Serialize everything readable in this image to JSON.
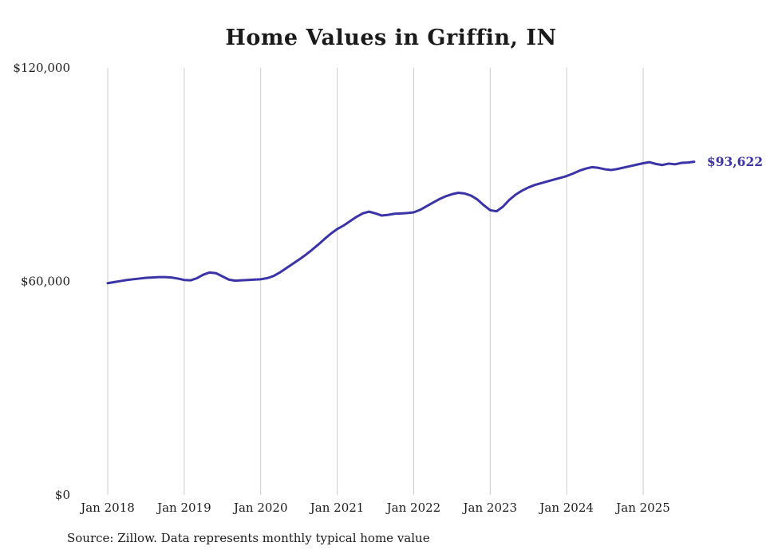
{
  "chart_data": {
    "type": "line",
    "title": "Home Values in Griffin, IN",
    "series_name": "Monthly typical home value",
    "ylim": [
      0,
      120000
    ],
    "grid": "vertical-only",
    "legend": "none",
    "line_color": "#3b33a8",
    "end_label": "$93,622",
    "final_value": 93622,
    "y_ticks": [
      {
        "value": 0,
        "label": "$0"
      },
      {
        "value": 60000,
        "label": "$60,000"
      },
      {
        "value": 120000,
        "label": "$120,000"
      }
    ],
    "x_ticks": [
      {
        "month_index": 0,
        "label": "Jan 2018"
      },
      {
        "month_index": 12,
        "label": "Jan 2019"
      },
      {
        "month_index": 24,
        "label": "Jan 2020"
      },
      {
        "month_index": 36,
        "label": "Jan 2021"
      },
      {
        "month_index": 48,
        "label": "Jan 2022"
      },
      {
        "month_index": 60,
        "label": "Jan 2023"
      },
      {
        "month_index": 72,
        "label": "Jan 2024"
      },
      {
        "month_index": 84,
        "label": "Jan 2025"
      }
    ],
    "x": [
      "2018-01",
      "2018-02",
      "2018-03",
      "2018-04",
      "2018-05",
      "2018-06",
      "2018-07",
      "2018-08",
      "2018-09",
      "2018-10",
      "2018-11",
      "2018-12",
      "2019-01",
      "2019-02",
      "2019-03",
      "2019-04",
      "2019-05",
      "2019-06",
      "2019-07",
      "2019-08",
      "2019-09",
      "2019-10",
      "2019-11",
      "2019-12",
      "2020-01",
      "2020-02",
      "2020-03",
      "2020-04",
      "2020-05",
      "2020-06",
      "2020-07",
      "2020-08",
      "2020-09",
      "2020-10",
      "2020-11",
      "2020-12",
      "2021-01",
      "2021-02",
      "2021-03",
      "2021-04",
      "2021-05",
      "2021-06",
      "2021-07",
      "2021-08",
      "2021-09",
      "2021-10",
      "2021-11",
      "2021-12",
      "2022-01",
      "2022-02",
      "2022-03",
      "2022-04",
      "2022-05",
      "2022-06",
      "2022-07",
      "2022-08",
      "2022-09",
      "2022-10",
      "2022-11",
      "2022-12",
      "2023-01",
      "2023-02",
      "2023-03",
      "2023-04",
      "2023-05",
      "2023-06",
      "2023-07",
      "2023-08",
      "2023-09",
      "2023-10",
      "2023-11",
      "2023-12",
      "2024-01",
      "2024-02",
      "2024-03",
      "2024-04",
      "2024-05",
      "2024-06",
      "2024-07",
      "2024-08",
      "2024-09",
      "2024-10",
      "2024-11",
      "2024-12",
      "2025-01",
      "2025-02",
      "2025-03",
      "2025-04",
      "2025-05",
      "2025-06",
      "2025-07",
      "2025-08",
      "2025-09"
    ],
    "values": [
      59500,
      59800,
      60100,
      60400,
      60600,
      60800,
      61000,
      61100,
      61200,
      61200,
      61100,
      60800,
      60400,
      60300,
      60900,
      61900,
      62500,
      62300,
      61400,
      60500,
      60200,
      60300,
      60400,
      60500,
      60600,
      60900,
      61500,
      62500,
      63700,
      64900,
      66100,
      67400,
      68800,
      70300,
      71900,
      73400,
      74700,
      75700,
      76900,
      78100,
      79100,
      79600,
      79100,
      78500,
      78700,
      79000,
      79100,
      79200,
      79400,
      80100,
      81100,
      82100,
      83100,
      83900,
      84500,
      84900,
      84700,
      84100,
      83000,
      81400,
      80000,
      79700,
      81000,
      82900,
      84400,
      85500,
      86400,
      87100,
      87600,
      88100,
      88600,
      89100,
      89600,
      90300,
      91100,
      91700,
      92100,
      91900,
      91500,
      91300,
      91600,
      92000,
      92400,
      92800,
      93200,
      93500,
      93000,
      92700,
      93100,
      92900,
      93300,
      93400,
      93622
    ]
  },
  "footer": {
    "source_note": "Source: Zillow. Data represents monthly typical home value"
  }
}
